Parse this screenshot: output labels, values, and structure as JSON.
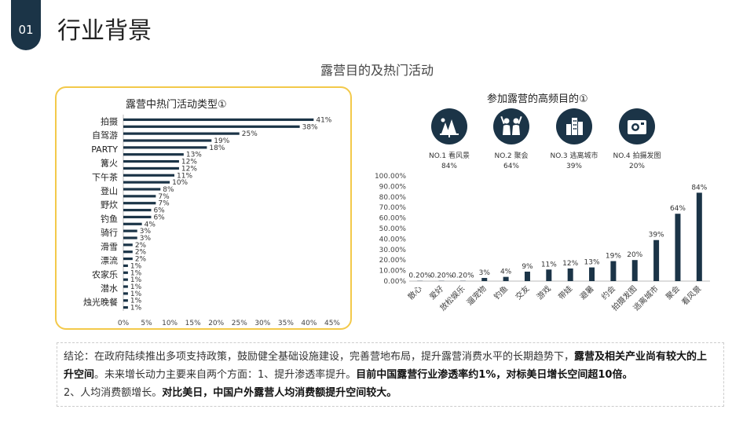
{
  "header": {
    "section_number": "01",
    "title": "行业背景"
  },
  "subtitle": "露营目的及热门活动",
  "left_chart_title": "露营中热门活动类型①",
  "right_chart_title": "参加露营的高频目的①",
  "top_purposes": [
    {
      "rank": "NO.1 看风景",
      "value": "84%",
      "icon": "landscape-icon"
    },
    {
      "rank": "NO.2 聚会",
      "value": "64%",
      "icon": "gathering-icon"
    },
    {
      "rank": "NO.3 逃离城市",
      "value": "39%",
      "icon": "city-icon"
    },
    {
      "rank": "NO.4 拍摄发图",
      "value": "20%",
      "icon": "camera-icon"
    }
  ],
  "chart_data": [
    {
      "type": "bar",
      "orientation": "horizontal",
      "title": "露营中热门活动类型①",
      "categories": [
        "拍摄",
        "",
        "自驾游",
        "",
        "PARTY",
        "",
        "篝火",
        "",
        "下午茶",
        "",
        "登山",
        "",
        "野炊",
        "",
        "钓鱼",
        "",
        "骑行",
        "",
        "滑雪",
        "",
        "漂流",
        "",
        "农家乐",
        "",
        "潜水",
        "",
        "烛光晚餐",
        ""
      ],
      "values": [
        41,
        38,
        25,
        19,
        18,
        13,
        12,
        12,
        11,
        10,
        8,
        7,
        7,
        6,
        6,
        4,
        3,
        3,
        2,
        2,
        2,
        1,
        1,
        1,
        1,
        1,
        1,
        1
      ],
      "value_labels": [
        "41%",
        "38%",
        "25%",
        "19%",
        "18%",
        "13%",
        "12%",
        "12%",
        "11%",
        "10%",
        "8%",
        "7%",
        "7%",
        "6%",
        "6%",
        "4%",
        "3%",
        "3%",
        "2%",
        "2%",
        "2%",
        "1%",
        "1%",
        "1%",
        "1%",
        "1%",
        "1%",
        "1%"
      ],
      "xlim": [
        0,
        45
      ],
      "xticks": [
        "0%",
        "5%",
        "10%",
        "15%",
        "20%",
        "25%",
        "30%",
        "35%",
        "40%",
        "45%"
      ],
      "color": "#1b3447"
    },
    {
      "type": "bar",
      "title": "参加露营的高频目的①",
      "categories": [
        "散心",
        "爱好",
        "放松娱乐",
        "遛宠物",
        "钓鱼",
        "交友",
        "游戏",
        "带娃",
        "避暑",
        "约会",
        "拍摄发图",
        "逃离城市",
        "聚会",
        "看风景"
      ],
      "values": [
        0.2,
        0.2,
        0.2,
        3,
        4,
        9,
        11,
        12,
        13,
        19,
        20,
        39,
        64,
        84
      ],
      "value_labels": [
        "0.20%",
        "0.20%",
        "0.20%",
        "3%",
        "4%",
        "9%",
        "11%",
        "12%",
        "13%",
        "19%",
        "20%",
        "39%",
        "64%",
        "84%"
      ],
      "ylim": [
        0,
        100
      ],
      "yticks": [
        "0.00%",
        "10.00%",
        "20.00%",
        "30.00%",
        "40.00%",
        "50.00%",
        "60.00%",
        "70.00%",
        "80.00%",
        "90.00%",
        "100.00%"
      ],
      "color": "#1b3447"
    }
  ],
  "conclusion": {
    "part1": "结论：在政府陆续推出多项支持政策，鼓励健全基础设施建设，完善营地布局，提升露营消费水平的长期趋势下，",
    "bold1": "露营及相关产业尚有较大的上升空间",
    "part2": "。未来增长动力主要来自两个方面：1、提升渗透率提升。",
    "bold2": "目前中国露营行业渗透率约1%，对标美日增长空间超10倍。",
    "part3": "2、人均消费额增长。",
    "bold3": "对比美日，中国户外露营人均消费额提升空间较大。"
  }
}
